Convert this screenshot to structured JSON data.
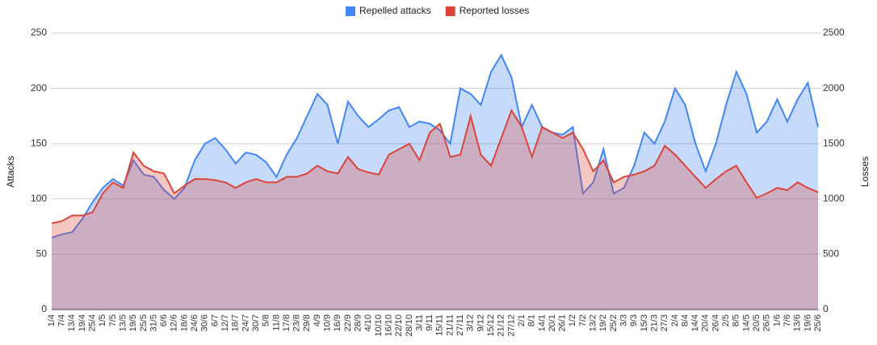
{
  "chart_data": {
    "type": "area",
    "y_label": "Attacks",
    "y2_label": "Losses",
    "categories": [
      "1/4",
      "7/4",
      "13/4",
      "19/4",
      "25/4",
      "1/5",
      "7/5",
      "13/5",
      "19/5",
      "25/5",
      "31/5",
      "6/6",
      "12/6",
      "18/6",
      "24/6",
      "30/6",
      "6/7",
      "12/7",
      "18/7",
      "24/7",
      "30/7",
      "5/8",
      "11/8",
      "17/8",
      "23/8",
      "29/8",
      "4/9",
      "10/9",
      "16/9",
      "22/9",
      "28/9",
      "4/10",
      "10/10",
      "16/10",
      "22/10",
      "28/10",
      "3/11",
      "9/11",
      "15/11",
      "21/11",
      "27/11",
      "3/12",
      "9/12",
      "15/12",
      "21/12",
      "27/12",
      "2/1",
      "8/1",
      "14/1",
      "20/1",
      "26/1",
      "1/2",
      "7/2",
      "13/2",
      "19/2",
      "25/2",
      "3/3",
      "9/3",
      "15/3",
      "21/3",
      "27/3",
      "2/4",
      "8/4",
      "14/4",
      "20/4",
      "26/4",
      "2/5",
      "8/5",
      "14/5",
      "20/5",
      "26/5",
      "1/6",
      "7/6",
      "13/6",
      "19/6",
      "25/6"
    ],
    "series": [
      {
        "name": "Repelled attacks",
        "color": "#4285f4",
        "axis": "y",
        "values": [
          65,
          68,
          70,
          82,
          97,
          110,
          118,
          112,
          135,
          122,
          120,
          108,
          100,
          110,
          135,
          150,
          155,
          145,
          132,
          142,
          140,
          133,
          120,
          140,
          155,
          175,
          195,
          185,
          150,
          188,
          175,
          165,
          172,
          180,
          183,
          165,
          170,
          168,
          162,
          150,
          200,
          195,
          185,
          215,
          230,
          210,
          165,
          185,
          165,
          160,
          158,
          165,
          105,
          115,
          145,
          105,
          110,
          130,
          160,
          150,
          170,
          200,
          185,
          150,
          125,
          150,
          185,
          215,
          195,
          160,
          170,
          190,
          170,
          190,
          205,
          165
        ]
      },
      {
        "name": "Reported losses",
        "color": "#db4437",
        "axis": "y2",
        "values": [
          780,
          800,
          850,
          850,
          880,
          1050,
          1150,
          1100,
          1420,
          1300,
          1250,
          1230,
          1050,
          1120,
          1180,
          1180,
          1170,
          1150,
          1100,
          1150,
          1180,
          1150,
          1150,
          1200,
          1200,
          1230,
          1300,
          1250,
          1230,
          1380,
          1270,
          1240,
          1220,
          1400,
          1450,
          1500,
          1350,
          1600,
          1680,
          1380,
          1400,
          1750,
          1400,
          1300,
          1550,
          1800,
          1650,
          1380,
          1650,
          1600,
          1550,
          1600,
          1450,
          1250,
          1350,
          1150,
          1200,
          1220,
          1250,
          1300,
          1480,
          1400,
          1300,
          1200,
          1100,
          1180,
          1250,
          1300,
          1150,
          1010,
          1050,
          1100,
          1080,
          1150,
          1100,
          1060
        ]
      }
    ],
    "ylim": [
      0,
      250
    ],
    "yticks": [
      0,
      50,
      100,
      150,
      200,
      250
    ],
    "y2lim": [
      0,
      2500
    ],
    "y2ticks": [
      0,
      500,
      1000,
      1500,
      2000,
      2500
    ],
    "grid": true,
    "legend": "top"
  }
}
